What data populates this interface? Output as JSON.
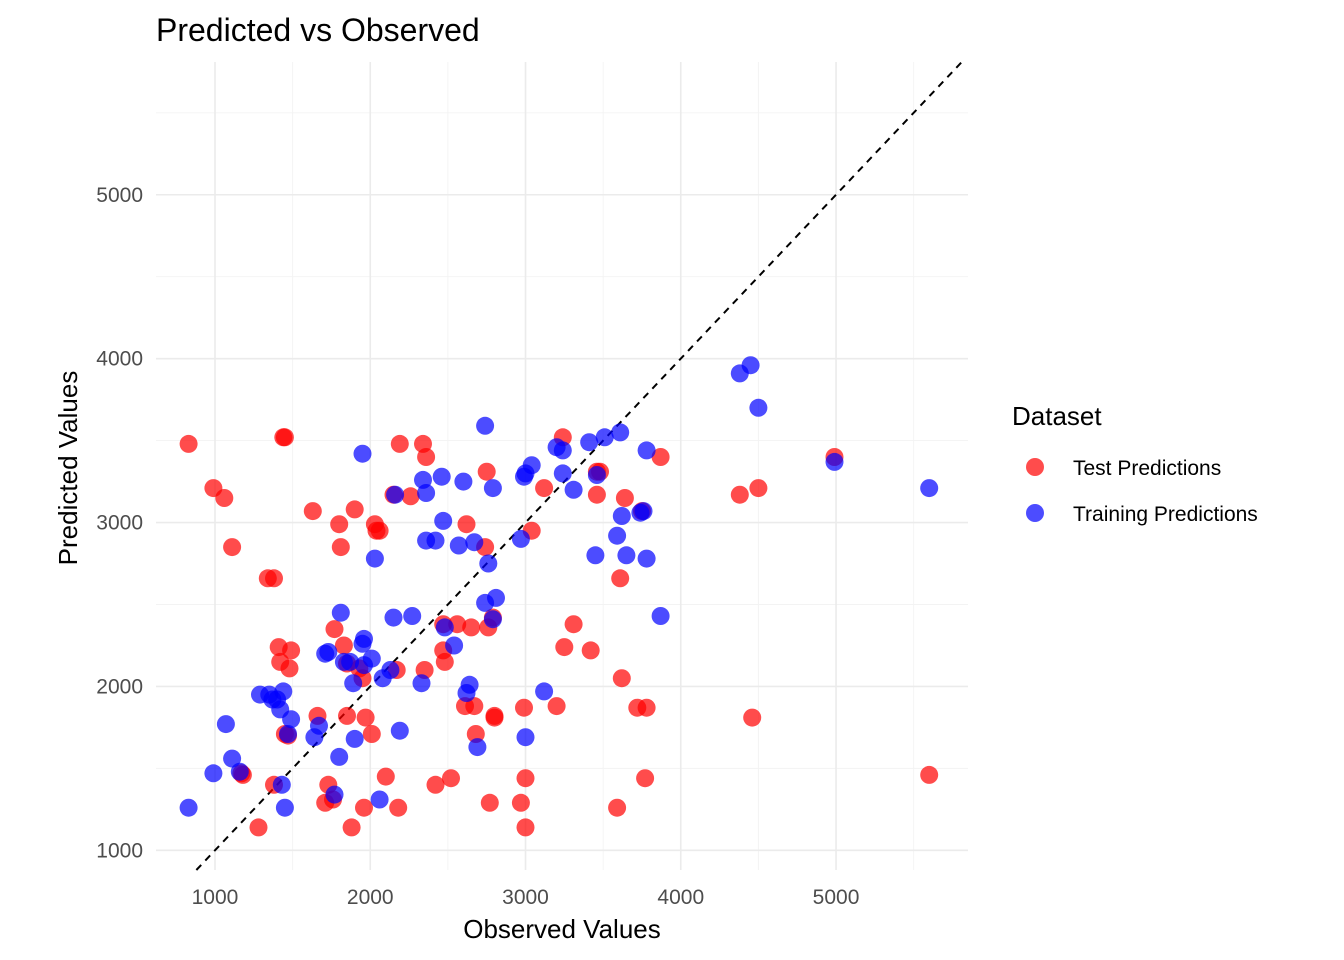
{
  "chart_data": {
    "type": "scatter",
    "title": "Predicted vs Observed",
    "xlabel": "Observed Values",
    "ylabel": "Predicted Values",
    "xlim": [
      620,
      5850
    ],
    "ylim": [
      880,
      5810
    ],
    "x_ticks": [
      1000,
      2000,
      3000,
      4000,
      5000
    ],
    "y_ticks": [
      1000,
      2000,
      3000,
      4000,
      5000
    ],
    "x_tick_labels": [
      "1000",
      "2000",
      "3000",
      "4000",
      "5000"
    ],
    "y_tick_labels": [
      "1000",
      "2000",
      "3000",
      "4000",
      "5000"
    ],
    "grid": true,
    "reference_line": "y = x",
    "legend": {
      "title": "Dataset",
      "position": "right"
    },
    "series": [
      {
        "name": "Test Predictions",
        "color": "#ff0000",
        "points": [
          [
            830,
            3480
          ],
          [
            990,
            3210
          ],
          [
            1060,
            3150
          ],
          [
            1110,
            2850
          ],
          [
            1170,
            1470
          ],
          [
            1180,
            1460
          ],
          [
            1280,
            1140
          ],
          [
            1340,
            2660
          ],
          [
            1380,
            2660
          ],
          [
            1380,
            1400
          ],
          [
            1410,
            2240
          ],
          [
            1420,
            2150
          ],
          [
            1440,
            3520
          ],
          [
            1450,
            3520
          ],
          [
            1450,
            1710
          ],
          [
            1470,
            1700
          ],
          [
            1480,
            2110
          ],
          [
            1490,
            2220
          ],
          [
            1630,
            3070
          ],
          [
            1660,
            1820
          ],
          [
            1710,
            1290
          ],
          [
            1730,
            1400
          ],
          [
            1760,
            1310
          ],
          [
            1770,
            2350
          ],
          [
            1800,
            2990
          ],
          [
            1810,
            2850
          ],
          [
            1830,
            2250
          ],
          [
            1850,
            2140
          ],
          [
            1850,
            1820
          ],
          [
            1880,
            1140
          ],
          [
            1900,
            3080
          ],
          [
            1930,
            2110
          ],
          [
            1950,
            2050
          ],
          [
            1960,
            1260
          ],
          [
            1970,
            1810
          ],
          [
            2010,
            1710
          ],
          [
            2030,
            2990
          ],
          [
            2040,
            2950
          ],
          [
            2060,
            2950
          ],
          [
            2100,
            1450
          ],
          [
            2150,
            3170
          ],
          [
            2170,
            2100
          ],
          [
            2180,
            1260
          ],
          [
            2190,
            3480
          ],
          [
            2260,
            3160
          ],
          [
            2340,
            3480
          ],
          [
            2360,
            3400
          ],
          [
            2350,
            2100
          ],
          [
            2420,
            1400
          ],
          [
            2470,
            2380
          ],
          [
            2470,
            2220
          ],
          [
            2480,
            2150
          ],
          [
            2520,
            1440
          ],
          [
            2560,
            2380
          ],
          [
            2610,
            1880
          ],
          [
            2620,
            2990
          ],
          [
            2650,
            2360
          ],
          [
            2680,
            1710
          ],
          [
            2670,
            1880
          ],
          [
            2750,
            3310
          ],
          [
            2740,
            2850
          ],
          [
            2760,
            2360
          ],
          [
            2770,
            1290
          ],
          [
            2790,
            2420
          ],
          [
            2800,
            1820
          ],
          [
            2800,
            1810
          ],
          [
            2970,
            1290
          ],
          [
            2990,
            1870
          ],
          [
            3000,
            1140
          ],
          [
            3000,
            1440
          ],
          [
            3040,
            2950
          ],
          [
            3120,
            3210
          ],
          [
            3200,
            1880
          ],
          [
            3240,
            3520
          ],
          [
            3250,
            2240
          ],
          [
            3310,
            2380
          ],
          [
            3420,
            2220
          ],
          [
            3460,
            3310
          ],
          [
            3460,
            3170
          ],
          [
            3480,
            3310
          ],
          [
            3590,
            1260
          ],
          [
            3610,
            2660
          ],
          [
            3620,
            2050
          ],
          [
            3640,
            3150
          ],
          [
            3720,
            1870
          ],
          [
            3750,
            3070
          ],
          [
            3770,
            1440
          ],
          [
            3780,
            1870
          ],
          [
            3870,
            3400
          ],
          [
            4380,
            3170
          ],
          [
            4460,
            1810
          ],
          [
            4500,
            3210
          ],
          [
            4990,
            3400
          ],
          [
            5600,
            1460
          ]
        ]
      },
      {
        "name": "Training Predictions",
        "color": "#0000ff",
        "points": [
          [
            830,
            1260
          ],
          [
            990,
            1470
          ],
          [
            1070,
            1770
          ],
          [
            1110,
            1560
          ],
          [
            1160,
            1480
          ],
          [
            1290,
            1950
          ],
          [
            1350,
            1950
          ],
          [
            1370,
            1920
          ],
          [
            1400,
            1920
          ],
          [
            1430,
            1400
          ],
          [
            1420,
            1860
          ],
          [
            1440,
            1970
          ],
          [
            1450,
            1260
          ],
          [
            1470,
            1710
          ],
          [
            1490,
            1800
          ],
          [
            1640,
            1690
          ],
          [
            1670,
            1760
          ],
          [
            1710,
            2200
          ],
          [
            1730,
            2210
          ],
          [
            1770,
            1340
          ],
          [
            1800,
            1570
          ],
          [
            1810,
            2450
          ],
          [
            1830,
            2150
          ],
          [
            1870,
            2150
          ],
          [
            1890,
            2020
          ],
          [
            1900,
            1680
          ],
          [
            1950,
            3420
          ],
          [
            1950,
            2260
          ],
          [
            1960,
            2290
          ],
          [
            1960,
            2130
          ],
          [
            2010,
            2170
          ],
          [
            2030,
            2780
          ],
          [
            2060,
            1310
          ],
          [
            2080,
            2050
          ],
          [
            2130,
            2100
          ],
          [
            2150,
            2420
          ],
          [
            2160,
            3170
          ],
          [
            2190,
            1730
          ],
          [
            2270,
            2430
          ],
          [
            2330,
            2020
          ],
          [
            2340,
            3260
          ],
          [
            2360,
            2890
          ],
          [
            2360,
            3180
          ],
          [
            2420,
            2890
          ],
          [
            2460,
            3280
          ],
          [
            2470,
            3010
          ],
          [
            2480,
            2360
          ],
          [
            2540,
            2250
          ],
          [
            2570,
            2860
          ],
          [
            2600,
            3250
          ],
          [
            2620,
            1960
          ],
          [
            2640,
            2010
          ],
          [
            2670,
            2880
          ],
          [
            2690,
            1630
          ],
          [
            2740,
            3590
          ],
          [
            2740,
            2510
          ],
          [
            2760,
            2750
          ],
          [
            2790,
            3210
          ],
          [
            2790,
            2410
          ],
          [
            2810,
            2540
          ],
          [
            2970,
            2900
          ],
          [
            2990,
            3280
          ],
          [
            3000,
            3300
          ],
          [
            3000,
            1690
          ],
          [
            3040,
            3350
          ],
          [
            3120,
            1970
          ],
          [
            3200,
            3460
          ],
          [
            3240,
            3440
          ],
          [
            3240,
            3300
          ],
          [
            3310,
            3200
          ],
          [
            3410,
            3490
          ],
          [
            3450,
            2800
          ],
          [
            3460,
            3290
          ],
          [
            3510,
            3520
          ],
          [
            3590,
            2920
          ],
          [
            3610,
            3550
          ],
          [
            3620,
            3040
          ],
          [
            3650,
            2800
          ],
          [
            3740,
            3060
          ],
          [
            3760,
            3070
          ],
          [
            3780,
            2780
          ],
          [
            3780,
            3440
          ],
          [
            3870,
            2430
          ],
          [
            4380,
            3910
          ],
          [
            4450,
            3960
          ],
          [
            4500,
            3700
          ],
          [
            4990,
            3370
          ],
          [
            5600,
            3210
          ]
        ]
      }
    ]
  }
}
